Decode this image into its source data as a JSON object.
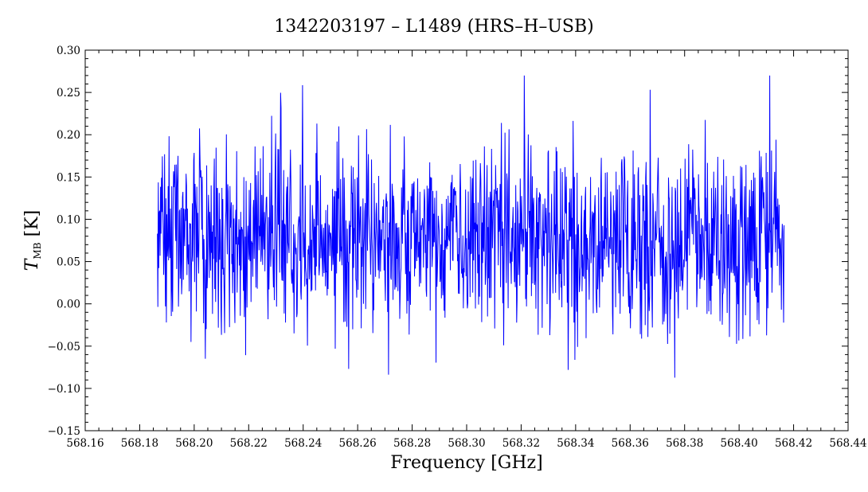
{
  "chart_data": {
    "type": "line",
    "title": "1342203197 – L1489 (HRS–H–USB)",
    "xlabel": "Frequency [GHz]",
    "ylabel_main": "T",
    "ylabel_sub": "MB",
    "ylabel_unit": " [K]",
    "xlim": [
      568.16,
      568.44
    ],
    "ylim": [
      -0.15,
      0.3
    ],
    "x_ticks": [
      568.16,
      568.18,
      568.2,
      568.22,
      568.24,
      568.26,
      568.28,
      568.3,
      568.32,
      568.34,
      568.36,
      568.38,
      568.4,
      568.42,
      568.44
    ],
    "x_tick_labels": [
      "568.16",
      "568.18",
      "568.20",
      "568.22",
      "568.24",
      "568.26",
      "568.28",
      "568.30",
      "568.32",
      "568.34",
      "568.36",
      "568.38",
      "568.40",
      "568.42",
      "568.44"
    ],
    "y_ticks": [
      -0.15,
      -0.1,
      -0.05,
      0.0,
      0.05,
      0.1,
      0.15,
      0.2,
      0.25,
      0.3
    ],
    "y_tick_labels": [
      "−0.15",
      "−0.10",
      "−0.05",
      "0.00",
      "0.05",
      "0.10",
      "0.15",
      "0.20",
      "0.25",
      "0.30"
    ],
    "series": [
      {
        "color": "#0000ff",
        "x_start": 568.1865,
        "x_end": 568.4165,
        "n_points": 1400,
        "mean": 0.075,
        "std_dev": 0.055,
        "min": -0.095,
        "max": 0.27
      }
    ]
  }
}
